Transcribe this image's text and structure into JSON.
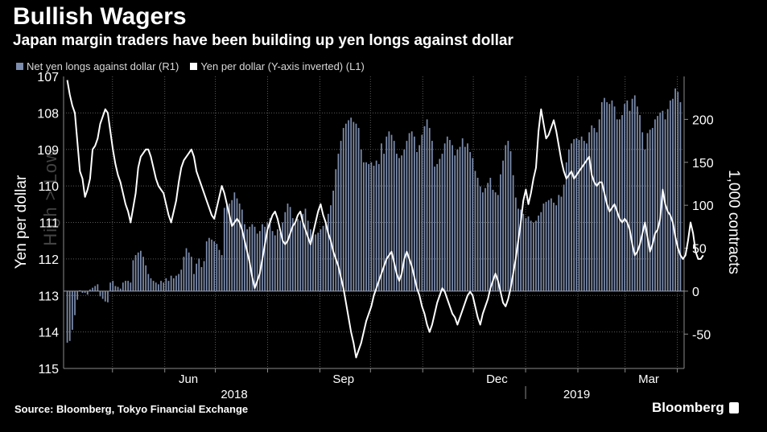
{
  "title": "Bullish Wagers",
  "subtitle": "Japan margin traders have been building up yen longs against dollar",
  "legend": {
    "bars_label": "Net yen longs against dollar (R1)",
    "line_label": "Yen per dollar (Y-axis inverted) (L1)"
  },
  "watermark": "High > Low",
  "source": "Source: Bloomberg, Tokyo Financial Exchange",
  "brand": "Bloomberg",
  "colors": {
    "bars": "#7d8dae",
    "line": "#ffffff",
    "grid": "#5a5a5a",
    "background": "#000000"
  },
  "chart_data": {
    "type": "bar+line",
    "title": "Bullish Wagers",
    "subtitle": "Japan margin traders have been building up yen longs against dollar",
    "left_axis": {
      "label": "Yen per dollar",
      "inverted": true,
      "range": [
        107,
        115
      ],
      "ticks": [
        107,
        108,
        109,
        110,
        111,
        112,
        113,
        114,
        115
      ]
    },
    "right_axis": {
      "label": "1,000 contracts",
      "range": [
        -90,
        250
      ],
      "ticks": [
        -50,
        0,
        50,
        100,
        150,
        200
      ]
    },
    "x_axis": {
      "month_ticks": [
        "Jun",
        "Sep",
        "Dec",
        "Mar"
      ],
      "year_labels": [
        "2018",
        "2019"
      ]
    },
    "period_start": "2018-04-02",
    "period_end": "2019-04-05",
    "series": [
      {
        "name": "Net yen longs against dollar (R1)",
        "axis": "right",
        "type": "bar",
        "values": [
          -60,
          -58,
          -45,
          -28,
          -10,
          1,
          -2,
          -2,
          -4,
          2,
          4,
          6,
          8,
          -6,
          -9,
          -12,
          -13,
          10,
          12,
          6,
          5,
          3,
          10,
          12,
          12,
          10,
          36,
          42,
          45,
          47,
          40,
          30,
          20,
          15,
          12,
          10,
          8,
          12,
          10,
          15,
          12,
          18,
          15,
          18,
          20,
          25,
          40,
          50,
          45,
          40,
          20,
          32,
          38,
          28,
          35,
          58,
          62,
          60,
          58,
          55,
          48,
          42,
          97,
          100,
          102,
          106,
          115,
          108,
          102,
          95,
          78,
          72,
          75,
          78,
          75,
          67,
          70,
          78,
          75,
          80,
          85,
          70,
          65,
          72,
          68,
          80,
          92,
          102,
          98,
          85,
          80,
          84,
          82,
          90,
          96,
          82,
          72,
          66,
          66,
          68,
          72,
          76,
          79,
          90,
          100,
          117,
          142,
          160,
          175,
          190,
          195,
          199,
          202,
          197,
          195,
          190,
          165,
          150,
          150,
          148,
          150,
          146,
          152,
          148,
          172,
          160,
          180,
          186,
          182,
          175,
          160,
          155,
          158,
          165,
          175,
          184,
          186,
          180,
          162,
          170,
          182,
          192,
          200,
          190,
          175,
          145,
          148,
          154,
          160,
          172,
          180,
          176,
          170,
          158,
          165,
          168,
          178,
          168,
          172,
          162,
          155,
          140,
          132,
          122,
          115,
          120,
          126,
          132,
          118,
          115,
          112,
          136,
          152,
          170,
          175,
          163,
          135,
          109,
          96,
          95,
          90,
          85,
          87,
          82,
          80,
          82,
          88,
          92,
          102,
          104,
          106,
          108,
          103,
          100,
          112,
          110,
          124,
          150,
          165,
          172,
          177,
          178,
          176,
          180,
          175,
          172,
          185,
          193,
          190,
          185,
          200,
          220,
          225,
          220,
          218,
          222,
          215,
          200,
          200,
          205,
          218,
          222,
          210,
          224,
          228,
          215,
          205,
          185,
          165,
          184,
          188,
          190,
          200,
          204,
          208,
          210,
          200,
          212,
          222,
          224,
          236,
          232,
          220
        ],
        "note": "weekly net yen long positions, 1,000 contracts"
      },
      {
        "name": "Yen per dollar (Y-axis inverted) (L1)",
        "axis": "left",
        "type": "line",
        "values": [
          107.1,
          107.5,
          107.8,
          108.0,
          108.8,
          109.6,
          109.8,
          110.3,
          110.1,
          109.8,
          109.0,
          108.9,
          108.7,
          108.3,
          108.1,
          107.9,
          108.0,
          108.5,
          109.0,
          109.4,
          109.7,
          109.9,
          110.2,
          110.5,
          110.7,
          111.0,
          110.6,
          110.2,
          109.5,
          109.2,
          109.1,
          109.0,
          109.0,
          109.2,
          109.5,
          109.8,
          110.0,
          110.1,
          110.2,
          110.5,
          110.8,
          111.0,
          110.7,
          110.4,
          109.9,
          109.5,
          109.3,
          109.2,
          109.1,
          109.0,
          109.2,
          109.6,
          109.8,
          110.0,
          110.2,
          110.4,
          110.6,
          110.8,
          110.9,
          110.6,
          110.3,
          110.0,
          110.2,
          110.5,
          110.8,
          111.1,
          111.0,
          110.9,
          111.0,
          111.2,
          111.5,
          111.8,
          112.1,
          112.5,
          112.8,
          112.6,
          112.4,
          112.0,
          111.6,
          111.2,
          111.0,
          110.8,
          110.7,
          110.9,
          111.2,
          111.5,
          111.6,
          111.5,
          111.3,
          111.1,
          111.0,
          110.8,
          110.7,
          111.0,
          111.2,
          111.4,
          111.6,
          111.3,
          111.0,
          110.7,
          110.5,
          110.8,
          111.0,
          111.3,
          111.5,
          111.8,
          112.0,
          112.2,
          112.5,
          112.8,
          113.2,
          113.6,
          114.0,
          114.3,
          114.7,
          114.5,
          114.3,
          114.0,
          113.7,
          113.5,
          113.3,
          113.0,
          112.8,
          112.6,
          112.4,
          112.2,
          112.0,
          111.9,
          111.8,
          112.1,
          112.4,
          112.6,
          112.4,
          112.0,
          111.8,
          112.0,
          112.2,
          112.5,
          112.8,
          113.0,
          113.3,
          113.5,
          113.8,
          114.0,
          113.8,
          113.5,
          113.2,
          113.0,
          112.8,
          112.9,
          113.1,
          113.3,
          113.5,
          113.6,
          113.8,
          113.6,
          113.4,
          113.2,
          113.0,
          112.9,
          113.0,
          113.3,
          113.6,
          113.8,
          113.5,
          113.3,
          113.1,
          112.8,
          112.6,
          112.4,
          112.6,
          112.9,
          113.2,
          113.3,
          113.1,
          112.8,
          112.4,
          112.0,
          111.5,
          111.0,
          110.4,
          110.1,
          110.5,
          110.2,
          109.8,
          109.5,
          108.5,
          107.9,
          108.3,
          108.7,
          108.6,
          108.4,
          108.2,
          108.5,
          108.9,
          109.3,
          109.6,
          109.8,
          109.7,
          109.6,
          109.8,
          109.7,
          109.6,
          109.5,
          109.4,
          109.3,
          109.2,
          109.7,
          109.9,
          110.0,
          109.9,
          109.9,
          110.2,
          110.5,
          110.7,
          110.6,
          110.5,
          110.7,
          110.9,
          111.0,
          110.9,
          111.0,
          111.2,
          111.6,
          111.9,
          111.8,
          111.6,
          111.3,
          111.0,
          111.4,
          111.8,
          111.6,
          111.3,
          111.2,
          110.9,
          110.1,
          110.5,
          110.7,
          110.8,
          111.0,
          111.4,
          111.7,
          111.9,
          112.0,
          111.9,
          111.5,
          111.0,
          111.3,
          111.8,
          112.0,
          112.0,
          111.9
        ],
        "note": "USD/JPY; axis inverted so higher on chart = stronger yen"
      }
    ]
  }
}
